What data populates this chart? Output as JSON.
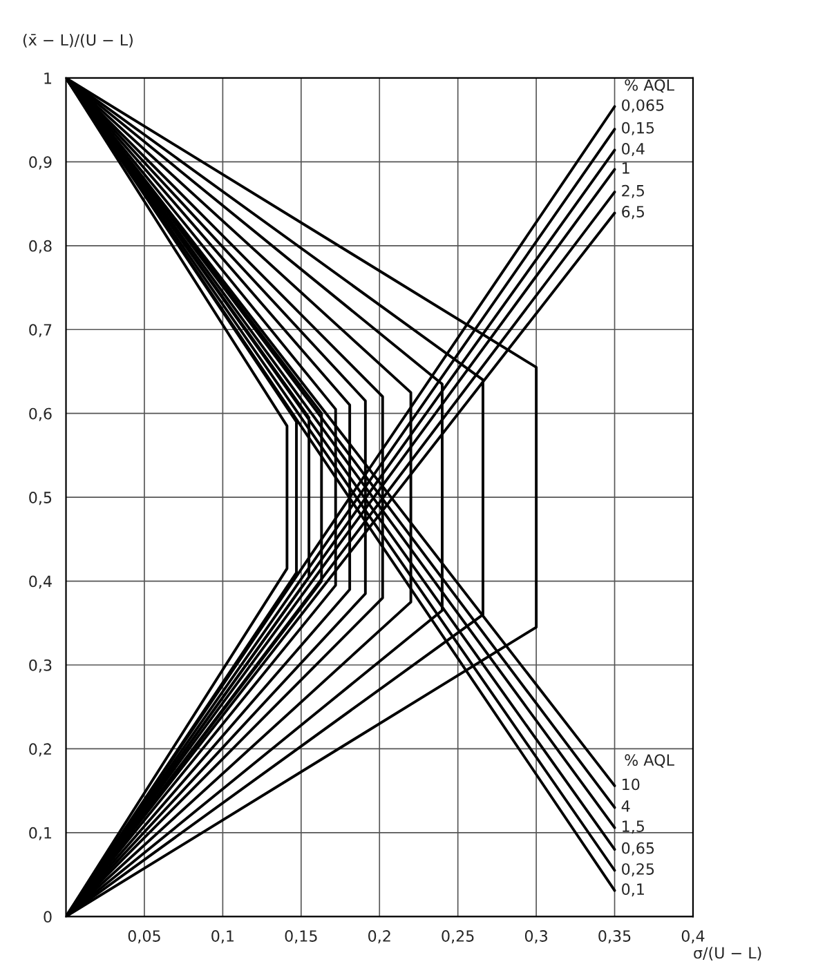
{
  "chart_data": {
    "type": "line",
    "xlabel": "σ/(U − L)",
    "ylabel": "(x̄ − L)/(U − L)",
    "annotations": [
      "% AQL",
      "% AQL"
    ],
    "xlim": [
      0,
      0.4
    ],
    "ylim": [
      0,
      1
    ],
    "xticks": [
      {
        "value": 0.05,
        "label": "0,05"
      },
      {
        "value": 0.1,
        "label": "0,1"
      },
      {
        "value": 0.15,
        "label": "0,15"
      },
      {
        "value": 0.2,
        "label": "0,2"
      },
      {
        "value": 0.25,
        "label": "0,25"
      },
      {
        "value": 0.3,
        "label": "0,3"
      },
      {
        "value": 0.35,
        "label": "0,35"
      },
      {
        "value": 0.4,
        "label": "0,4"
      }
    ],
    "yticks": [
      0,
      {
        "value": 0.1,
        "label": "0,1"
      },
      {
        "value": 0.2,
        "label": "0,2"
      },
      {
        "value": 0.3,
        "label": "0,3"
      },
      {
        "value": 0.4,
        "label": "0,4"
      },
      {
        "value": 0.5,
        "label": "0,5"
      },
      {
        "value": 0.6,
        "label": "0,6"
      },
      {
        "value": 0.7,
        "label": "0,7"
      },
      {
        "value": 0.8,
        "label": "0,8"
      },
      {
        "value": 0.9,
        "label": "0,9"
      },
      1
    ],
    "grid": true,
    "legend": false,
    "marker": "none",
    "line_style": "solid",
    "series": [
      {
        "name": "0,065",
        "color": "#000000",
        "x": [
          0,
          0.35
        ],
        "values": [
          0,
          0.966
        ]
      },
      {
        "name": "0,15",
        "color": "#000000",
        "x": [
          0,
          0.35
        ],
        "values": [
          0,
          0.939
        ]
      },
      {
        "name": "0,4",
        "color": "#000000",
        "x": [
          0,
          0.35
        ],
        "values": [
          0,
          0.914
        ]
      },
      {
        "name": "1",
        "color": "#000000",
        "x": [
          0,
          0.35
        ],
        "values": [
          0,
          0.891
        ]
      },
      {
        "name": "2,5",
        "color": "#000000",
        "x": [
          0,
          0.35
        ],
        "values": [
          0,
          0.864
        ]
      },
      {
        "name": "6,5",
        "color": "#000000",
        "x": [
          0,
          0.35
        ],
        "values": [
          0,
          0.839
        ]
      },
      {
        "name": "10",
        "color": "#000000",
        "x": [
          0,
          0.35
        ],
        "values": [
          1,
          0.156
        ]
      },
      {
        "name": "4",
        "color": "#000000",
        "x": [
          0,
          0.35
        ],
        "values": [
          1,
          0.13
        ]
      },
      {
        "name": "1,5",
        "color": "#000000",
        "x": [
          0,
          0.35
        ],
        "values": [
          1,
          0.106
        ]
      },
      {
        "name": "0,65",
        "color": "#000000",
        "x": [
          0,
          0.35
        ],
        "values": [
          1,
          0.08
        ]
      },
      {
        "name": "0,25",
        "color": "#000000",
        "x": [
          0,
          0.35
        ],
        "values": [
          1,
          0.055
        ]
      },
      {
        "name": "0,1",
        "color": "#000000",
        "x": [
          0,
          0.35
        ],
        "values": [
          1,
          0.031
        ]
      },
      {
        "color": "#000000",
        "x": [
          0,
          0.141,
          0.141,
          0
        ],
        "values": [
          1,
          0.585,
          0.415,
          0
        ]
      },
      {
        "color": "#000000",
        "x": [
          0,
          0.147,
          0.147,
          0
        ],
        "values": [
          1,
          0.59,
          0.41,
          0
        ]
      },
      {
        "color": "#000000",
        "x": [
          0,
          0.155,
          0.155,
          0
        ],
        "values": [
          1,
          0.595,
          0.405,
          0
        ]
      },
      {
        "color": "#000000",
        "x": [
          0,
          0.163,
          0.163,
          0
        ],
        "values": [
          1,
          0.6,
          0.4,
          0
        ]
      },
      {
        "color": "#000000",
        "x": [
          0,
          0.172,
          0.172,
          0
        ],
        "values": [
          1,
          0.605,
          0.395,
          0
        ]
      },
      {
        "color": "#000000",
        "x": [
          0,
          0.181,
          0.181,
          0
        ],
        "values": [
          1,
          0.61,
          0.39,
          0
        ]
      },
      {
        "color": "#000000",
        "x": [
          0,
          0.191,
          0.191,
          0
        ],
        "values": [
          1,
          0.615,
          0.385,
          0
        ]
      },
      {
        "color": "#000000",
        "x": [
          0,
          0.202,
          0.202,
          0
        ],
        "values": [
          1,
          0.62,
          0.38,
          0
        ]
      },
      {
        "color": "#000000",
        "x": [
          0,
          0.22,
          0.22,
          0
        ],
        "values": [
          1,
          0.625,
          0.375,
          0
        ]
      },
      {
        "color": "#000000",
        "x": [
          0,
          0.24,
          0.24,
          0
        ],
        "values": [
          1,
          0.635,
          0.365,
          0
        ]
      },
      {
        "color": "#000000",
        "x": [
          0,
          0.266,
          0.266,
          0
        ],
        "values": [
          1,
          0.64,
          0.36,
          0
        ]
      },
      {
        "color": "#000000",
        "x": [
          0,
          0.3,
          0.3,
          0
        ],
        "values": [
          1,
          0.655,
          0.345,
          0
        ]
      }
    ]
  }
}
